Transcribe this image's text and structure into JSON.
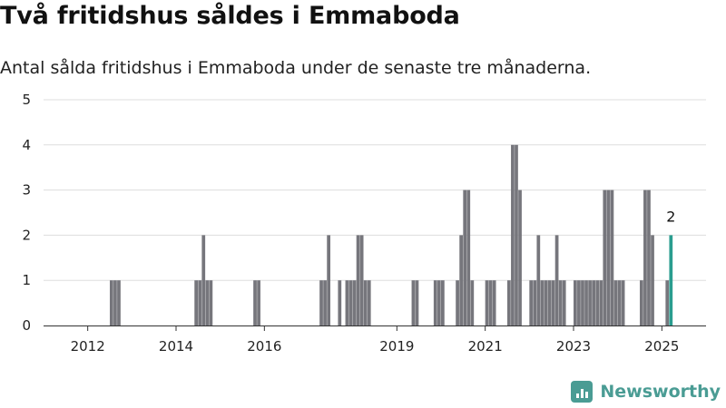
{
  "header": {
    "title": "Två fritidshus såldes i Emmaboda",
    "subtitle": "Antal sålda fritidshus i Emmaboda under de senaste tre månaderna."
  },
  "brand": {
    "name": "Newsworthy",
    "color": "#4a9c94"
  },
  "colors": {
    "bar": "#76767c",
    "highlight": "#2a9d8f",
    "grid": "#dddddd",
    "axis": "#333333"
  },
  "chart_data": {
    "type": "bar",
    "title": "Två fritidshus såldes i Emmaboda",
    "subtitle": "Antal sålda fritidshus i Emmaboda under de senaste tre månaderna.",
    "x_unit": "month",
    "xlim": [
      "2011-01",
      "2025-12"
    ],
    "ylim": [
      0,
      5
    ],
    "y_ticks": [
      0,
      1,
      2,
      3,
      4,
      5
    ],
    "x_ticks": [
      "2012",
      "2014",
      "2016",
      "2019",
      "2021",
      "2023",
      "2025"
    ],
    "grid": true,
    "legend": "none",
    "points": [
      {
        "x": "2012-07",
        "y": 1
      },
      {
        "x": "2012-08",
        "y": 1
      },
      {
        "x": "2012-09",
        "y": 1
      },
      {
        "x": "2014-06",
        "y": 1
      },
      {
        "x": "2014-07",
        "y": 1
      },
      {
        "x": "2014-08",
        "y": 2
      },
      {
        "x": "2014-09",
        "y": 1
      },
      {
        "x": "2014-10",
        "y": 1
      },
      {
        "x": "2015-10",
        "y": 1
      },
      {
        "x": "2015-11",
        "y": 1
      },
      {
        "x": "2017-04",
        "y": 1
      },
      {
        "x": "2017-05",
        "y": 1
      },
      {
        "x": "2017-06",
        "y": 2
      },
      {
        "x": "2017-09",
        "y": 1
      },
      {
        "x": "2017-11",
        "y": 1
      },
      {
        "x": "2017-12",
        "y": 1
      },
      {
        "x": "2018-01",
        "y": 1
      },
      {
        "x": "2018-02",
        "y": 2
      },
      {
        "x": "2018-03",
        "y": 2
      },
      {
        "x": "2018-04",
        "y": 1
      },
      {
        "x": "2018-05",
        "y": 1
      },
      {
        "x": "2019-05",
        "y": 1
      },
      {
        "x": "2019-06",
        "y": 1
      },
      {
        "x": "2019-11",
        "y": 1
      },
      {
        "x": "2019-12",
        "y": 1
      },
      {
        "x": "2020-01",
        "y": 1
      },
      {
        "x": "2020-05",
        "y": 1
      },
      {
        "x": "2020-06",
        "y": 2
      },
      {
        "x": "2020-07",
        "y": 3
      },
      {
        "x": "2020-08",
        "y": 3
      },
      {
        "x": "2020-09",
        "y": 1
      },
      {
        "x": "2021-01",
        "y": 1
      },
      {
        "x": "2021-02",
        "y": 1
      },
      {
        "x": "2021-03",
        "y": 1
      },
      {
        "x": "2021-07",
        "y": 1
      },
      {
        "x": "2021-08",
        "y": 4
      },
      {
        "x": "2021-09",
        "y": 4
      },
      {
        "x": "2021-10",
        "y": 3
      },
      {
        "x": "2022-01",
        "y": 1
      },
      {
        "x": "2022-02",
        "y": 1
      },
      {
        "x": "2022-03",
        "y": 2
      },
      {
        "x": "2022-04",
        "y": 1
      },
      {
        "x": "2022-05",
        "y": 1
      },
      {
        "x": "2022-06",
        "y": 1
      },
      {
        "x": "2022-07",
        "y": 1
      },
      {
        "x": "2022-08",
        "y": 2
      },
      {
        "x": "2022-09",
        "y": 1
      },
      {
        "x": "2022-10",
        "y": 1
      },
      {
        "x": "2023-01",
        "y": 1
      },
      {
        "x": "2023-02",
        "y": 1
      },
      {
        "x": "2023-03",
        "y": 1
      },
      {
        "x": "2023-04",
        "y": 1
      },
      {
        "x": "2023-05",
        "y": 1
      },
      {
        "x": "2023-06",
        "y": 1
      },
      {
        "x": "2023-07",
        "y": 1
      },
      {
        "x": "2023-08",
        "y": 1
      },
      {
        "x": "2023-09",
        "y": 3
      },
      {
        "x": "2023-10",
        "y": 3
      },
      {
        "x": "2023-11",
        "y": 3
      },
      {
        "x": "2023-12",
        "y": 1
      },
      {
        "x": "2024-01",
        "y": 1
      },
      {
        "x": "2024-02",
        "y": 1
      },
      {
        "x": "2024-07",
        "y": 1
      },
      {
        "x": "2024-08",
        "y": 3
      },
      {
        "x": "2024-09",
        "y": 3
      },
      {
        "x": "2024-10",
        "y": 2
      },
      {
        "x": "2025-02",
        "y": 1
      }
    ],
    "highlight": {
      "x": "2025-03",
      "y": 2,
      "label": "2"
    }
  }
}
